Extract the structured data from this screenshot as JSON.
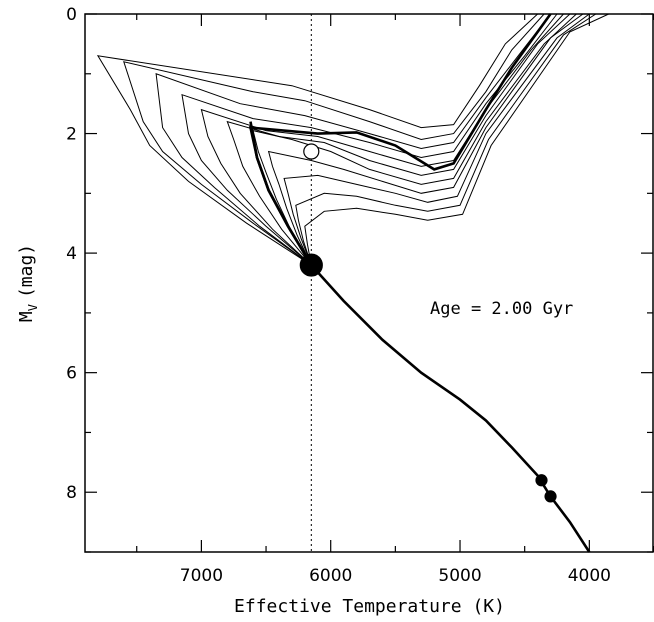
{
  "chart_data": {
    "type": "line",
    "xlabel": "Effective Temperature (K)",
    "ylabel": {
      "main": "M",
      "sub": "V",
      "unit": "(mag)"
    },
    "xlim": [
      7900,
      3500
    ],
    "ylim": [
      9,
      0
    ],
    "x_ticks": [
      7000,
      6000,
      5000,
      4000
    ],
    "y_ticks": [
      0,
      2,
      4,
      6,
      8
    ],
    "annotation": "Age = 2.00 Gyr",
    "reference_line": {
      "x": 6150,
      "style": "dotted"
    },
    "markers": [
      {
        "x": 6150,
        "y": 2.3,
        "kind": "open",
        "size": "medium"
      },
      {
        "x": 6150,
        "y": 4.2,
        "kind": "filled",
        "size": "large"
      },
      {
        "x": 4370,
        "y": 7.8,
        "kind": "filled",
        "size": "small"
      },
      {
        "x": 4300,
        "y": 8.07,
        "kind": "filled",
        "size": "small"
      }
    ],
    "main_sequence": [
      {
        "x": 6150,
        "y": 4.2
      },
      {
        "x": 5900,
        "y": 4.8
      },
      {
        "x": 5600,
        "y": 5.45
      },
      {
        "x": 5300,
        "y": 6.0
      },
      {
        "x": 5000,
        "y": 6.45
      },
      {
        "x": 4800,
        "y": 6.8
      },
      {
        "x": 4600,
        "y": 7.25
      },
      {
        "x": 4400,
        "y": 7.72
      },
      {
        "x": 4300,
        "y": 8.07
      },
      {
        "x": 4150,
        "y": 8.5
      },
      {
        "x": 4000,
        "y": 9.0
      }
    ],
    "series": [
      {
        "values": [
          {
            "x": 6150,
            "y": 4.2
          },
          {
            "x": 6650,
            "y": 3.5
          },
          {
            "x": 7100,
            "y": 2.8
          },
          {
            "x": 7400,
            "y": 2.2
          },
          {
            "x": 7550,
            "y": 1.6
          },
          {
            "x": 7800,
            "y": 0.7
          },
          {
            "x": 6300,
            "y": 1.2
          },
          {
            "x": 5700,
            "y": 1.6
          },
          {
            "x": 5300,
            "y": 1.9
          },
          {
            "x": 5050,
            "y": 1.85
          },
          {
            "x": 4850,
            "y": 1.2
          },
          {
            "x": 4650,
            "y": 0.5
          },
          {
            "x": 4400,
            "y": 0.0
          }
        ]
      },
      {
        "values": [
          {
            "x": 6150,
            "y": 4.2
          },
          {
            "x": 6600,
            "y": 3.5
          },
          {
            "x": 7000,
            "y": 2.85
          },
          {
            "x": 7300,
            "y": 2.3
          },
          {
            "x": 7450,
            "y": 1.8
          },
          {
            "x": 7600,
            "y": 0.8
          },
          {
            "x": 6600,
            "y": 1.3
          },
          {
            "x": 6200,
            "y": 1.45
          },
          {
            "x": 5700,
            "y": 1.8
          },
          {
            "x": 5300,
            "y": 2.1
          },
          {
            "x": 5050,
            "y": 2.0
          },
          {
            "x": 4800,
            "y": 1.3
          },
          {
            "x": 4600,
            "y": 0.6
          },
          {
            "x": 4350,
            "y": 0.0
          }
        ]
      },
      {
        "values": [
          {
            "x": 6150,
            "y": 4.2
          },
          {
            "x": 6550,
            "y": 3.55
          },
          {
            "x": 6900,
            "y": 2.9
          },
          {
            "x": 7150,
            "y": 2.4
          },
          {
            "x": 7300,
            "y": 1.9
          },
          {
            "x": 7350,
            "y": 1.0
          },
          {
            "x": 6700,
            "y": 1.5
          },
          {
            "x": 6200,
            "y": 1.7
          },
          {
            "x": 5700,
            "y": 2.0
          },
          {
            "x": 5300,
            "y": 2.25
          },
          {
            "x": 5050,
            "y": 2.15
          },
          {
            "x": 4800,
            "y": 1.4
          },
          {
            "x": 4550,
            "y": 0.7
          },
          {
            "x": 4300,
            "y": 0.0
          }
        ]
      },
      {
        "values": [
          {
            "x": 6150,
            "y": 4.2
          },
          {
            "x": 6500,
            "y": 3.55
          },
          {
            "x": 6800,
            "y": 2.95
          },
          {
            "x": 7000,
            "y": 2.45
          },
          {
            "x": 7100,
            "y": 2.0
          },
          {
            "x": 7150,
            "y": 1.35
          },
          {
            "x": 6600,
            "y": 1.75
          },
          {
            "x": 6150,
            "y": 1.9
          },
          {
            "x": 5700,
            "y": 2.15
          },
          {
            "x": 5300,
            "y": 2.4
          },
          {
            "x": 5050,
            "y": 2.3
          },
          {
            "x": 4800,
            "y": 1.5
          },
          {
            "x": 4500,
            "y": 0.7
          },
          {
            "x": 4250,
            "y": 0.0
          }
        ]
      },
      {
        "values": [
          {
            "x": 6150,
            "y": 4.2
          },
          {
            "x": 6450,
            "y": 3.6
          },
          {
            "x": 6700,
            "y": 3.0
          },
          {
            "x": 6850,
            "y": 2.5
          },
          {
            "x": 6950,
            "y": 2.05
          },
          {
            "x": 7000,
            "y": 1.6
          },
          {
            "x": 6500,
            "y": 1.95
          },
          {
            "x": 6100,
            "y": 2.05
          },
          {
            "x": 5700,
            "y": 2.3
          },
          {
            "x": 5300,
            "y": 2.55
          },
          {
            "x": 5050,
            "y": 2.45
          },
          {
            "x": 4800,
            "y": 1.6
          },
          {
            "x": 4450,
            "y": 0.6
          },
          {
            "x": 4200,
            "y": 0.0
          }
        ]
      },
      {
        "values": [
          {
            "x": 6150,
            "y": 4.2
          },
          {
            "x": 6380,
            "y": 3.6
          },
          {
            "x": 6550,
            "y": 3.05
          },
          {
            "x": 6680,
            "y": 2.55
          },
          {
            "x": 6750,
            "y": 2.1
          },
          {
            "x": 6800,
            "y": 1.8
          },
          {
            "x": 6400,
            "y": 2.05
          },
          {
            "x": 6050,
            "y": 2.15
          },
          {
            "x": 5700,
            "y": 2.45
          },
          {
            "x": 5300,
            "y": 2.7
          },
          {
            "x": 5050,
            "y": 2.6
          },
          {
            "x": 4800,
            "y": 1.7
          },
          {
            "x": 4400,
            "y": 0.5
          },
          {
            "x": 4150,
            "y": 0.0
          }
        ]
      },
      {
        "values": [
          {
            "x": 6150,
            "y": 4.2
          },
          {
            "x": 6300,
            "y": 3.65
          },
          {
            "x": 6420,
            "y": 3.1
          },
          {
            "x": 6500,
            "y": 2.65
          },
          {
            "x": 6560,
            "y": 2.3
          },
          {
            "x": 6600,
            "y": 1.95
          },
          {
            "x": 6300,
            "y": 2.1
          },
          {
            "x": 6000,
            "y": 2.3
          },
          {
            "x": 5700,
            "y": 2.6
          },
          {
            "x": 5300,
            "y": 2.85
          },
          {
            "x": 5050,
            "y": 2.75
          },
          {
            "x": 4800,
            "y": 1.8
          },
          {
            "x": 4350,
            "y": 0.5
          },
          {
            "x": 4100,
            "y": 0.0
          }
        ]
      },
      {
        "values": [
          {
            "x": 6150,
            "y": 4.2
          },
          {
            "x": 6260,
            "y": 3.7
          },
          {
            "x": 6340,
            "y": 3.25
          },
          {
            "x": 6400,
            "y": 2.85
          },
          {
            "x": 6450,
            "y": 2.55
          },
          {
            "x": 6480,
            "y": 2.3
          },
          {
            "x": 6150,
            "y": 2.45
          },
          {
            "x": 5900,
            "y": 2.6
          },
          {
            "x": 5600,
            "y": 2.8
          },
          {
            "x": 5300,
            "y": 3.0
          },
          {
            "x": 5050,
            "y": 2.9
          },
          {
            "x": 4800,
            "y": 1.9
          },
          {
            "x": 4300,
            "y": 0.4
          },
          {
            "x": 4050,
            "y": 0.0
          }
        ]
      },
      {
        "values": [
          {
            "x": 6150,
            "y": 4.2
          },
          {
            "x": 6230,
            "y": 3.75
          },
          {
            "x": 6290,
            "y": 3.35
          },
          {
            "x": 6330,
            "y": 3.0
          },
          {
            "x": 6360,
            "y": 2.75
          },
          {
            "x": 6100,
            "y": 2.7
          },
          {
            "x": 5800,
            "y": 2.85
          },
          {
            "x": 5500,
            "y": 3.0
          },
          {
            "x": 5250,
            "y": 3.15
          },
          {
            "x": 5020,
            "y": 3.05
          },
          {
            "x": 4800,
            "y": 2.0
          },
          {
            "x": 4250,
            "y": 0.4
          },
          {
            "x": 4000,
            "y": 0.0
          }
        ]
      },
      {
        "values": [
          {
            "x": 6150,
            "y": 4.2
          },
          {
            "x": 6210,
            "y": 3.8
          },
          {
            "x": 6250,
            "y": 3.45
          },
          {
            "x": 6270,
            "y": 3.2
          },
          {
            "x": 6050,
            "y": 3.0
          },
          {
            "x": 5800,
            "y": 3.05
          },
          {
            "x": 5500,
            "y": 3.2
          },
          {
            "x": 5250,
            "y": 3.3
          },
          {
            "x": 5000,
            "y": 3.2
          },
          {
            "x": 4780,
            "y": 2.1
          },
          {
            "x": 4200,
            "y": 0.35
          },
          {
            "x": 3950,
            "y": 0.0
          }
        ]
      },
      {
        "values": [
          {
            "x": 6150,
            "y": 4.2
          },
          {
            "x": 6180,
            "y": 3.85
          },
          {
            "x": 6200,
            "y": 3.55
          },
          {
            "x": 6050,
            "y": 3.3
          },
          {
            "x": 5800,
            "y": 3.25
          },
          {
            "x": 5500,
            "y": 3.35
          },
          {
            "x": 5250,
            "y": 3.45
          },
          {
            "x": 4980,
            "y": 3.35
          },
          {
            "x": 4760,
            "y": 2.2
          },
          {
            "x": 4150,
            "y": 0.3
          },
          {
            "x": 3850,
            "y": 0.0
          }
        ]
      }
    ],
    "highlight_series": [
      {
        "values": [
          {
            "x": 6150,
            "y": 4.2
          },
          {
            "x": 6330,
            "y": 3.55
          },
          {
            "x": 6480,
            "y": 2.95
          },
          {
            "x": 6570,
            "y": 2.4
          },
          {
            "x": 6620,
            "y": 1.9
          },
          {
            "x": 6100,
            "y": 2.0
          },
          {
            "x": 5800,
            "y": 1.98
          },
          {
            "x": 5500,
            "y": 2.2
          },
          {
            "x": 5200,
            "y": 2.6
          },
          {
            "x": 5050,
            "y": 2.5
          },
          {
            "x": 4800,
            "y": 1.6
          },
          {
            "x": 4600,
            "y": 0.9
          },
          {
            "x": 4300,
            "y": 0.0
          }
        ]
      },
      {
        "values": [
          {
            "x": 6150,
            "y": 4.2
          },
          {
            "x": 6330,
            "y": 3.55
          },
          {
            "x": 6480,
            "y": 2.95
          },
          {
            "x": 6570,
            "y": 2.4
          },
          {
            "x": 6620,
            "y": 1.8
          }
        ]
      }
    ]
  }
}
